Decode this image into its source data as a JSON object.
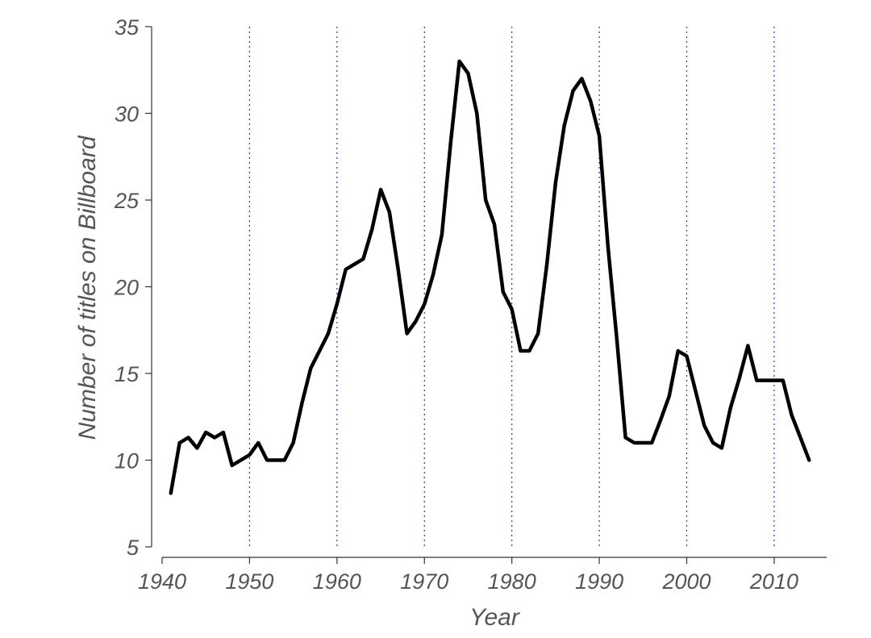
{
  "chart_data": {
    "type": "line",
    "title": "",
    "xlabel": "Year",
    "ylabel": "Number of titles on Billboard",
    "xlim": [
      1940,
      2016
    ],
    "ylim": [
      5,
      35
    ],
    "x_ticks": [
      1940,
      1950,
      1960,
      1970,
      1980,
      1990,
      2000,
      2010
    ],
    "y_ticks": [
      5,
      10,
      15,
      20,
      25,
      30,
      35
    ],
    "vertical_gridlines": [
      1950,
      1960,
      1970,
      1980,
      1990,
      2000,
      2010
    ],
    "grid_style": "dotted",
    "legend": "none",
    "series": [
      {
        "x": [
          1941,
          1942,
          1943,
          1944,
          1945,
          1946,
          1947,
          1948,
          1949,
          1950,
          1951,
          1952,
          1953,
          1954,
          1955,
          1956,
          1957,
          1958,
          1959,
          1960,
          1961,
          1962,
          1963,
          1964,
          1965,
          1966,
          1967,
          1968,
          1969,
          1970,
          1971,
          1972,
          1973,
          1974,
          1975,
          1976,
          1977,
          1978,
          1979,
          1980,
          1981,
          1982,
          1983,
          1984,
          1985,
          1986,
          1987,
          1988,
          1989,
          1990,
          1991,
          1992,
          1993,
          1994,
          1995,
          1996,
          1997,
          1998,
          1999,
          2000,
          2001,
          2002,
          2003,
          2004,
          2005,
          2006,
          2007,
          2008,
          2009,
          2010,
          2011,
          2012,
          2013,
          2014
        ],
        "y": [
          8.1,
          11.0,
          11.3,
          10.7,
          11.6,
          11.3,
          11.6,
          9.7,
          10.0,
          10.3,
          11.0,
          10.0,
          10.0,
          10.0,
          11.0,
          13.3,
          15.3,
          16.3,
          17.3,
          19.0,
          21.0,
          21.3,
          21.6,
          23.3,
          25.6,
          24.3,
          21.0,
          17.3,
          18.0,
          19.0,
          20.7,
          23.0,
          28.3,
          33.0,
          32.3,
          30.0,
          25.0,
          23.6,
          19.7,
          18.7,
          16.3,
          16.3,
          17.3,
          21.3,
          26.0,
          29.3,
          31.3,
          32.0,
          30.7,
          28.7,
          22.3,
          17.0,
          11.3,
          11.0,
          11.0,
          11.0,
          12.3,
          13.7,
          16.3,
          16.0,
          14.0,
          12.0,
          11.0,
          10.7,
          13.0,
          14.7,
          16.6,
          14.6,
          14.6,
          14.6,
          14.6,
          12.6,
          11.3,
          10.0
        ],
        "color": "#000000"
      }
    ],
    "gridline_color": "#2f2fd6"
  }
}
